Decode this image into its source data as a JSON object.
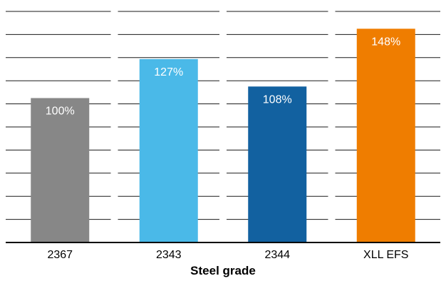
{
  "chart_data": {
    "type": "bar",
    "categories": [
      "2367",
      "2343",
      "2344",
      "XLL EFS"
    ],
    "values": [
      100,
      127,
      108,
      148
    ],
    "value_labels": [
      "100%",
      "127%",
      "108%",
      "148%"
    ],
    "colors": [
      "#878787",
      "#4ab9e8",
      "#1261a0",
      "#ef7d00"
    ],
    "xlabel": "Steel grade",
    "ylim": [
      0,
      160
    ],
    "grid": true
  }
}
